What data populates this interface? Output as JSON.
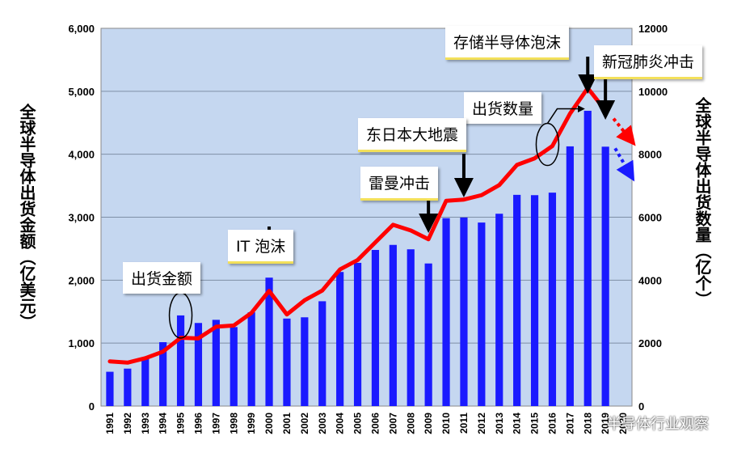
{
  "chart_data": {
    "type": "bar+line",
    "ylabel_left": "全球半导体出货金额（亿美元）",
    "ylabel_right": "全球半导体出货数量（亿个）",
    "years": [
      "1991",
      "1992",
      "1993",
      "1994",
      "1995",
      "1996",
      "1997",
      "1998",
      "1999",
      "2000",
      "2001",
      "2002",
      "2003",
      "2004",
      "2005",
      "2006",
      "2007",
      "2008",
      "2009",
      "2010",
      "2011",
      "2012",
      "2013",
      "2014",
      "2015",
      "2016",
      "2017",
      "2018",
      "2019",
      "2020"
    ],
    "series": [
      {
        "name": "出货金额",
        "type": "bar",
        "axis": "left",
        "color": "#1a1aff",
        "values": [
          545,
          595,
          770,
          1015,
          1440,
          1320,
          1370,
          1255,
          1490,
          2040,
          1390,
          1410,
          1665,
          2130,
          2275,
          2480,
          2560,
          2490,
          2265,
          2985,
          2995,
          2915,
          3055,
          3355,
          3350,
          3390,
          4125,
          4690,
          4120,
          null
        ]
      },
      {
        "name": "出货数量",
        "type": "line",
        "axis": "right",
        "color": "#ff0000",
        "values": [
          1420,
          1380,
          1520,
          1730,
          2170,
          2150,
          2520,
          2560,
          2960,
          3660,
          2910,
          3360,
          3670,
          4340,
          4640,
          5200,
          5760,
          5580,
          5300,
          6520,
          6560,
          6700,
          7020,
          7660,
          7870,
          8260,
          9290,
          10100,
          9390,
          null
        ]
      }
    ],
    "ylim_left": [
      0,
      6000
    ],
    "yticks_left": [
      "0",
      "1,000",
      "2,000",
      "3,000",
      "4,000",
      "5,000",
      "6,000"
    ],
    "ylim_right": [
      0,
      12000
    ],
    "yticks_right": [
      "0",
      "2000",
      "4000",
      "6000",
      "8000",
      "10000",
      "12000"
    ],
    "grid": true
  },
  "annotations": {
    "memory_bubble": "存储半导体泡沫",
    "covid": "新冠肺炎冲击",
    "quantity": "出货数量",
    "japan_quake": "东日本大地震",
    "lehman": "雷曼冲击",
    "it_bubble": "IT 泡沫",
    "amount": "出货金额"
  },
  "labels": {
    "left": "全球半导体出货金额（亿美元）",
    "right": "全球半导体出货数量（亿个）",
    "watermark": "半导体行业观察"
  },
  "colors": {
    "plot_bg": "#c5d7f0",
    "bar": "#1a1aff",
    "line": "#ff0000",
    "grid": "#7f8fa6"
  }
}
